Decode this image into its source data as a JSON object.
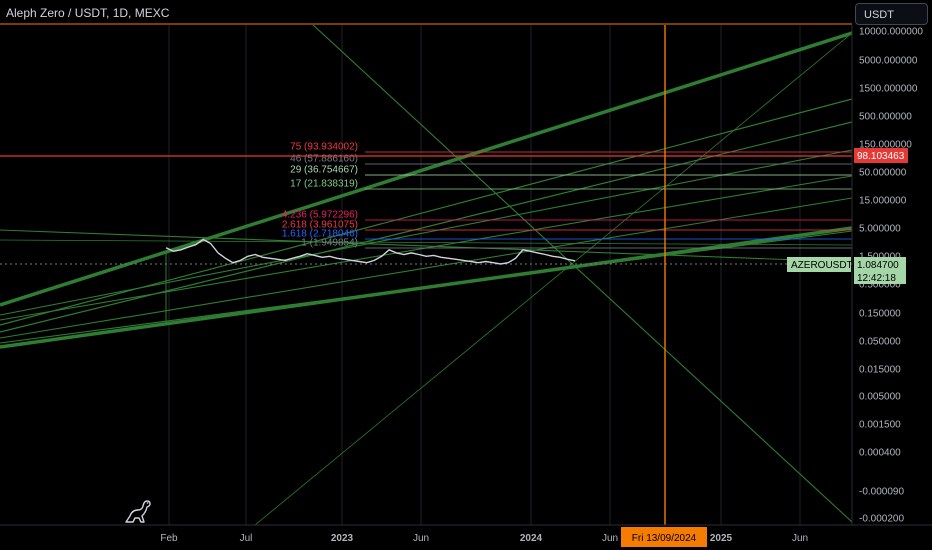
{
  "header": {
    "title": "Aleph Zero / USDT, 1D, MEXC",
    "currency_button": "USDT"
  },
  "colors": {
    "background": "#000000",
    "grid": "#1e222d",
    "axis_text": "#b2b5be",
    "trend_green": "#2e7d32",
    "crosshair": "#f57c00",
    "price_line": "#e53935",
    "fib_blue": "#2962ff",
    "price_tag_green": "#a5d6a7",
    "candle": "#d1d4dc"
  },
  "chart_data": {
    "type": "line",
    "symbol": "AZEROUSDT",
    "scale": "log",
    "price_axis": {
      "labels": [
        "10000.000000",
        "5000.000000",
        "1500.000000",
        "500.000000",
        "150.000000",
        "50.000000",
        "15.000000",
        "5.000000",
        "1.500000",
        "0.500000",
        "0.150000",
        "0.050000",
        "0.015000",
        "0.005000",
        "0.001500",
        "0.000400",
        "-0.000090",
        "-0.000200"
      ]
    },
    "time_axis": {
      "labels": [
        "Feb",
        "Jul",
        "2023",
        "Jun",
        "2024",
        "Jun",
        "2025",
        "Jun"
      ],
      "crosshair_date": "Fri 13/09/2024"
    },
    "fib_levels": [
      {
        "label": "75 (93.934002)",
        "color": "#f23645"
      },
      {
        "label": "46 (57.886160)",
        "color": "#787b86"
      },
      {
        "label": "29 (36.754667)",
        "color": "#a5d6a7"
      },
      {
        "label": "17 (21.838319)",
        "color": "#81c784"
      },
      {
        "label": "4.236 (5.972296)",
        "color": "#e91e63"
      },
      {
        "label": "2.618 (3.961075)",
        "color": "#f23645"
      },
      {
        "label": "1.618 (2.718046)",
        "color": "#2962ff"
      },
      {
        "label": "1 (1.949854)",
        "color": "#787b86"
      }
    ],
    "price_tags": {
      "crosshair_price": "98.103463",
      "symbol_tag": "AZEROUSDT",
      "last_price": "1.084700",
      "countdown": "12:42:18"
    },
    "series": [
      {
        "values": [
          1.85,
          1.6,
          1.7,
          1.9,
          2.1,
          2.6,
          2.2,
          1.5,
          1.2,
          1.0,
          1.1,
          1.3,
          1.4,
          1.25,
          1.2,
          1.15,
          1.1,
          1.2,
          1.3,
          1.45,
          1.35,
          1.25,
          1.3,
          1.2,
          1.15,
          1.1,
          1.05,
          1.0,
          1.1,
          1.3,
          1.7,
          1.5,
          1.4,
          1.5,
          1.4,
          1.3,
          1.35,
          1.25,
          1.2,
          1.15,
          1.1,
          1.05,
          1.0,
          1.05,
          1.0,
          0.95,
          1.0,
          1.2,
          1.7,
          1.6,
          1.5,
          1.4,
          1.3,
          1.25,
          1.15,
          1.08
        ]
      }
    ]
  }
}
